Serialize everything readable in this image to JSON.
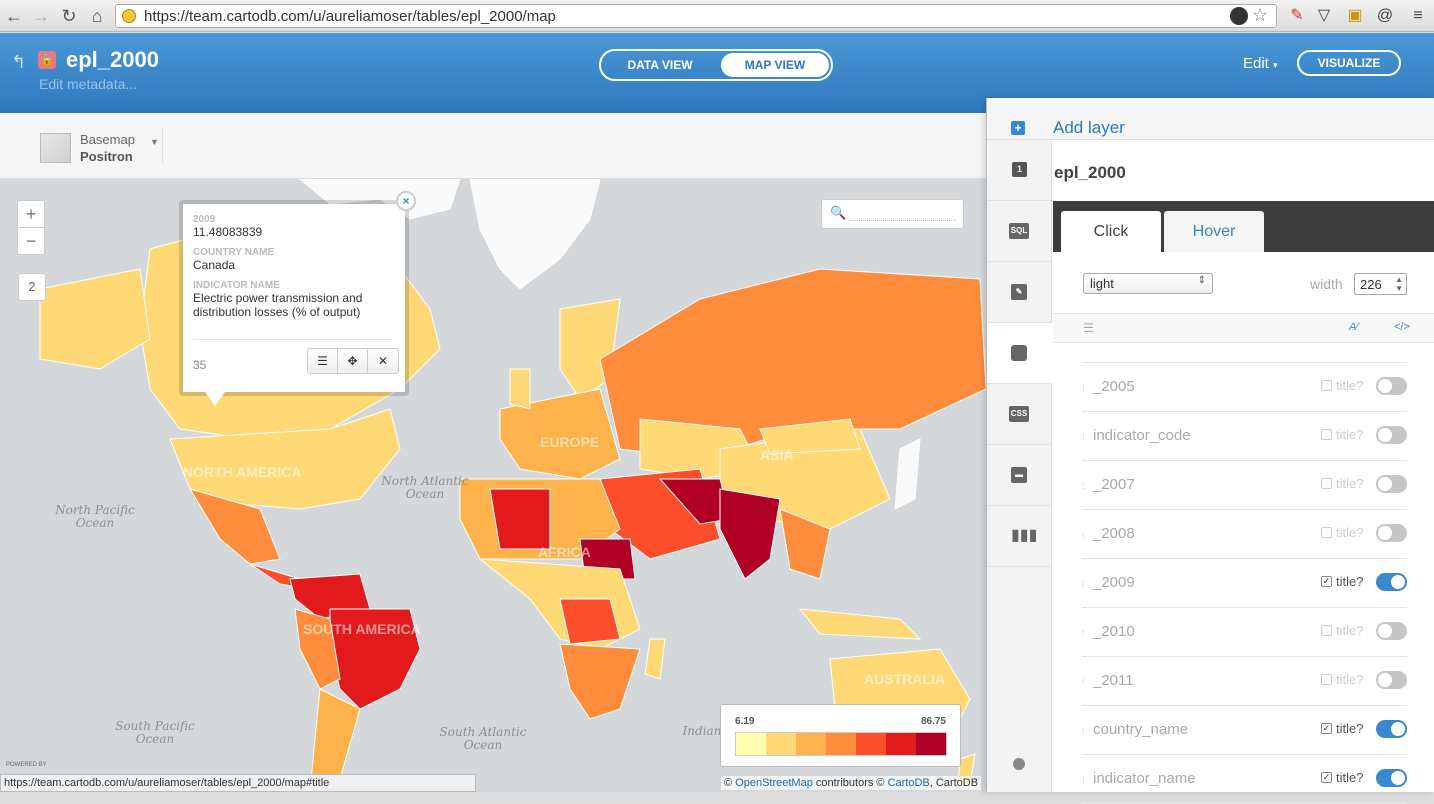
{
  "browser": {
    "url": "https://team.cartodb.com/u/aureliamoser/tables/epl_2000/map",
    "status_url": "https://team.cartodb.com/u/aureliamoser/tables/epl_2000/map#title"
  },
  "header": {
    "title": "epl_2000",
    "edit_metadata": "Edit metadata...",
    "data_view": "DATA VIEW",
    "map_view": "MAP VIEW",
    "edit": "Edit",
    "visualize": "VISUALIZE"
  },
  "basemap": {
    "label": "Basemap",
    "value": "Positron"
  },
  "map": {
    "zoom_in": "+",
    "zoom_out": "−",
    "layer_count": "2",
    "ocean_labels": [
      "North Pacific Ocean",
      "North Atlantic Ocean",
      "South Pacific Ocean",
      "South Atlantic Ocean",
      "Indian"
    ],
    "continent_labels": [
      "NORTH AMERICA",
      "EUROPE",
      "ASIA",
      "AFRICA",
      "SOUTH AMERICA",
      "AUSTRALIA"
    ],
    "powered_by": "POWERED BY"
  },
  "popup": {
    "fields": [
      {
        "key": "2009",
        "value": "11.48083839"
      },
      {
        "key": "COUNTRY NAME",
        "value": "Canada"
      },
      {
        "key": "INDICATOR NAME",
        "value": "Electric power transmission and distribution losses (% of output)"
      }
    ],
    "footer_id": "35"
  },
  "legend": {
    "min": "6.19",
    "max": "86.75",
    "colors": [
      "#ffffb2",
      "#fed976",
      "#feb24c",
      "#fd8d3c",
      "#fc4e2a",
      "#e31a1c",
      "#b10026"
    ]
  },
  "attribution": {
    "prefix": "©",
    "osm": "OpenStreetMap",
    "middle": "contributors ©",
    "cartodb": "CartoDB",
    "suffix": ", CartoDB"
  },
  "panel": {
    "add_layer": "Add layer",
    "layer_number": "1",
    "layer_name": "epl_2000",
    "sidebar_icons": [
      "sql-icon",
      "wizard-icon",
      "infowindow-icon",
      "css-icon",
      "legend-icon",
      "filters-icon"
    ],
    "sidebar_labels": [
      "SQL",
      "",
      "",
      "CSS",
      "",
      ""
    ],
    "tabs": [
      "Click",
      "Hover"
    ],
    "theme": "light",
    "width_label": "width",
    "width_value": "226",
    "title_label": "title?",
    "fields": [
      {
        "name": "_2005",
        "checked": false
      },
      {
        "name": "indicator_code",
        "checked": false
      },
      {
        "name": "_2007",
        "checked": false
      },
      {
        "name": "_2008",
        "checked": false
      },
      {
        "name": "_2009",
        "checked": true
      },
      {
        "name": "_2010",
        "checked": false
      },
      {
        "name": "_2011",
        "checked": false
      },
      {
        "name": "country_name",
        "checked": true
      },
      {
        "name": "indicator_name",
        "checked": true
      }
    ]
  }
}
